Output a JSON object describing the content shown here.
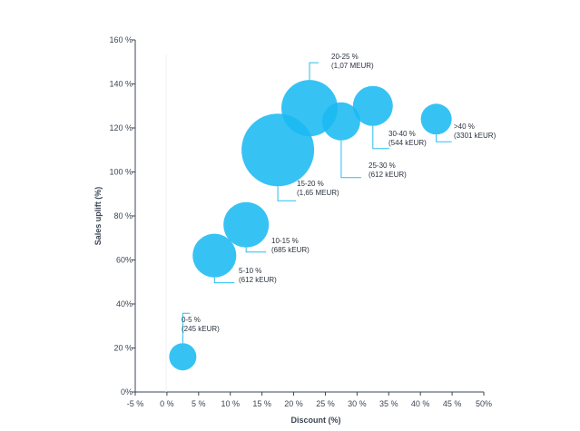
{
  "chart_data": {
    "type": "scatter",
    "bubble": true,
    "title": "",
    "xlabel": "Discount (%)",
    "ylabel": "Sales uplift (%)",
    "xlim": [
      -5,
      50
    ],
    "ylim": [
      0,
      160
    ],
    "x_ticks": [
      "-5 %",
      "0 %",
      "5 %",
      "10 %",
      "15 %",
      "20 %",
      "25 %",
      "30 %",
      "35 %",
      "40 %",
      "45 %",
      "50%"
    ],
    "y_ticks": [
      "0%",
      "20 %",
      "40%",
      "60%",
      "80 %",
      "100 %",
      "120 %",
      "140 %",
      "160 %"
    ],
    "grid": false,
    "colors": {
      "bubble": "#1bb9f2",
      "leader": "#28bdf0"
    },
    "points": [
      {
        "x": 2.5,
        "y": 16,
        "size_keur": 245,
        "label": "0-5 %",
        "value": "(245 kEUR)"
      },
      {
        "x": 7.5,
        "y": 62,
        "size_keur": 612,
        "label": "5-10 %",
        "value": "(612 kEUR)"
      },
      {
        "x": 12.5,
        "y": 76,
        "size_keur": 685,
        "label": "10-15 %",
        "value": "(685 kEUR)"
      },
      {
        "x": 17.5,
        "y": 110,
        "size_keur": 1650,
        "label": "15-20 %",
        "value": "(1,65 MEUR)"
      },
      {
        "x": 22.5,
        "y": 129,
        "size_keur": 1070,
        "label": "20-25 %",
        "value": "(1,07 MEUR)"
      },
      {
        "x": 27.5,
        "y": 123,
        "size_keur": 612,
        "label": "25-30 %",
        "value": "(612 kEUR)"
      },
      {
        "x": 32.5,
        "y": 130,
        "size_keur": 544,
        "label": "30-40 %",
        "value": "(544 kEUR)"
      },
      {
        "x": 42.5,
        "y": 124,
        "size_keur": 3301,
        "label": ">40 %",
        "value": "(3301 kEUR)"
      }
    ]
  }
}
